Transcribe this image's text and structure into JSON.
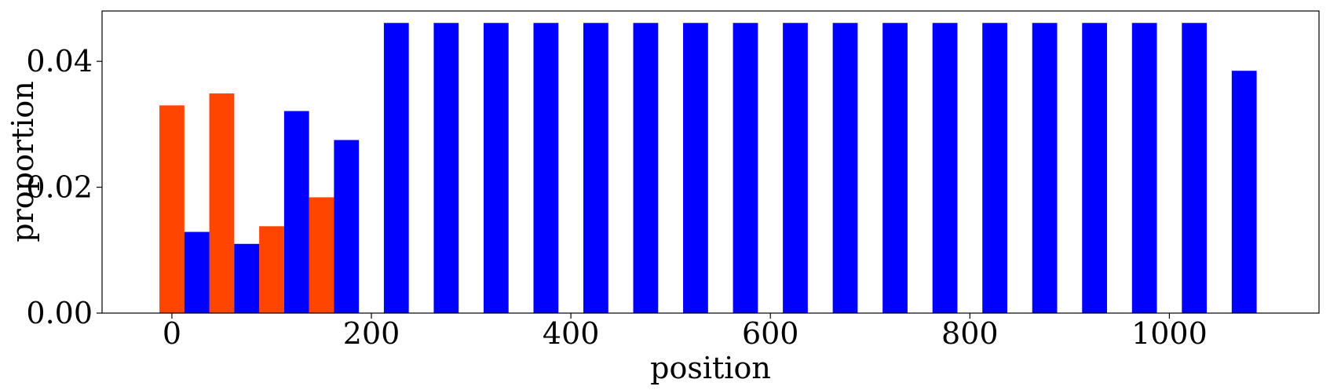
{
  "chart_data": {
    "type": "bar",
    "xlabel": "position",
    "ylabel": "proportion",
    "xlim": [
      -70,
      1150
    ],
    "ylim": [
      0,
      0.048
    ],
    "xticks": [
      {
        "value": 0,
        "label": "0"
      },
      {
        "value": 200,
        "label": "200"
      },
      {
        "value": 400,
        "label": "400"
      },
      {
        "value": 600,
        "label": "600"
      },
      {
        "value": 800,
        "label": "800"
      },
      {
        "value": 1000,
        "label": "1000"
      }
    ],
    "yticks": [
      {
        "value": 0,
        "label": "0.00"
      },
      {
        "value": 0.02,
        "label": "0.02"
      },
      {
        "value": 0.04,
        "label": "0.04"
      }
    ],
    "bar_width": 25,
    "grid": false,
    "series": [
      {
        "color": "#ff4500",
        "x": [
          0,
          50,
          100,
          150
        ],
        "values": [
          0.033,
          0.0349,
          0.0138,
          0.0184
        ]
      },
      {
        "color": "#0000ff",
        "x": [
          25,
          75,
          125,
          175,
          225,
          275,
          325,
          375,
          425,
          475,
          525,
          575,
          625,
          675,
          725,
          775,
          825,
          875,
          925,
          975,
          1025,
          1075
        ],
        "values": [
          0.0129,
          0.011,
          0.0321,
          0.0275,
          0.0461,
          0.0461,
          0.0461,
          0.0461,
          0.0461,
          0.0461,
          0.0461,
          0.0461,
          0.0461,
          0.0461,
          0.0461,
          0.0461,
          0.0461,
          0.0461,
          0.0461,
          0.0461,
          0.0461,
          0.0385
        ]
      }
    ]
  }
}
